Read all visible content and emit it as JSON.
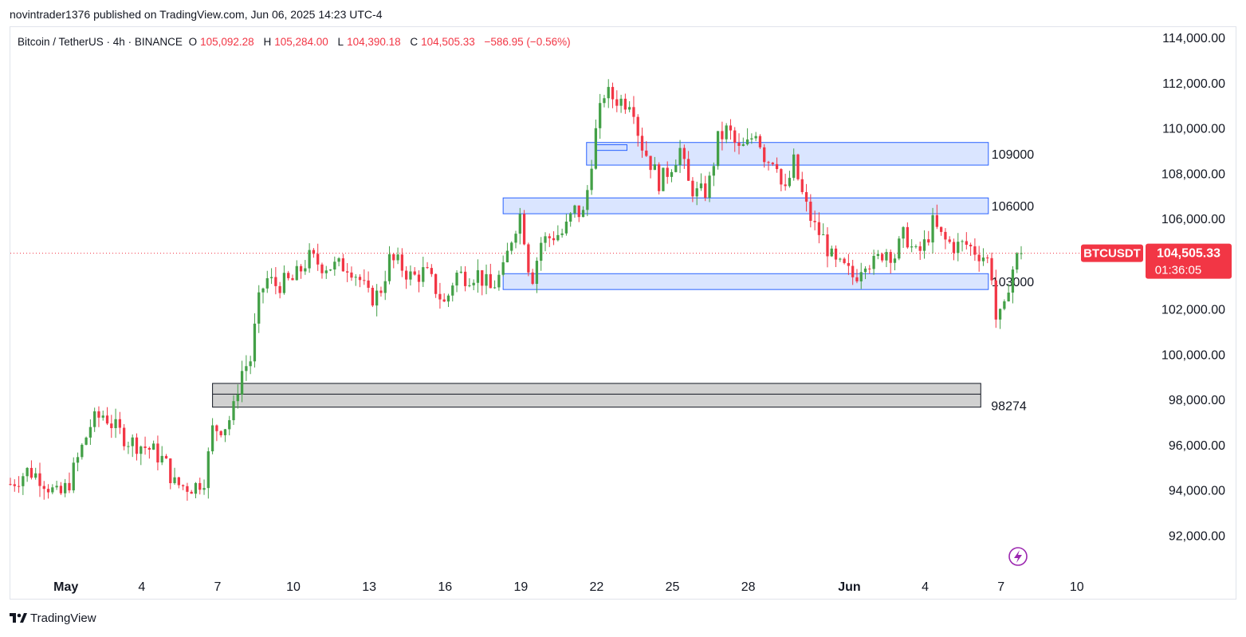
{
  "header": {
    "published_line": "novintrader1376 published on TradingView.com, Jun 06, 2025 14:23 UTC-4"
  },
  "legend": {
    "symbol": "Bitcoin / TetherUS · 4h · BINANCE",
    "open_label": "O",
    "open": "105,092.28",
    "high_label": "H",
    "high": "105,284.00",
    "low_label": "L",
    "low": "104,390.18",
    "close_label": "C",
    "close": "104,505.33",
    "change": "−586.95 (−0.56%)"
  },
  "price_tag": {
    "symbol": "BTCUSDT",
    "price": "104,505.33",
    "countdown": "01:36:05"
  },
  "footer": {
    "brand": "TradingView",
    "logo": "tradingview-logo-icon"
  },
  "colors": {
    "up": "#26a69a",
    "up_candle": "#43a047",
    "down": "#f23645",
    "zone_fill": "#d4e0ff",
    "zone_border": "#2962ff",
    "grey_zone": "#d1d1d1"
  },
  "chart_data": {
    "type": "candlestick",
    "timeframe": "4h",
    "y_axis": {
      "ticks": [
        92000,
        94000,
        96000,
        98000,
        100000,
        102000,
        104000,
        106000,
        108000,
        110000,
        112000,
        114000
      ],
      "tick_labels": [
        "92,000.00",
        "94,000.00",
        "96,000.00",
        "98,000.00",
        "100,000.00",
        "102,000.00",
        "104,000.00",
        "106,000.00",
        "108,000.00",
        "110,000.00",
        "112,000.00",
        "114,000.00"
      ],
      "ylim": [
        90500,
        114500
      ]
    },
    "x_axis": {
      "ticks": [
        "May",
        "4",
        "7",
        "10",
        "13",
        "16",
        "19",
        "22",
        "25",
        "28",
        "Jun",
        "4",
        "7",
        "10"
      ],
      "tick_day_index": [
        0,
        3,
        6,
        9,
        12,
        15,
        18,
        21,
        24,
        27,
        31,
        34,
        37,
        40
      ],
      "xlim_days": [
        -2.2,
        42.5
      ]
    },
    "current_price": 104505.33,
    "zones": [
      {
        "label": "109000",
        "low": 108400,
        "high": 109400,
        "start_day": 20.6,
        "end_day": 36.5,
        "color": "blue"
      },
      {
        "label": "106000",
        "low": 106250,
        "high": 106950,
        "start_day": 17.3,
        "end_day": 36.5,
        "color": "blue"
      },
      {
        "label": "103000",
        "low": 102900,
        "high": 103600,
        "start_day": 17.3,
        "end_day": 36.5,
        "color": "blue"
      },
      {
        "label": "98274",
        "low": 97700,
        "high": 98750,
        "start_day": 5.8,
        "end_day": 36.2,
        "color": "grey",
        "midline": 98274
      },
      {
        "label": "",
        "low": 109050,
        "high": 109300,
        "start_day": 21.0,
        "end_day": 22.2,
        "color": "blue"
      }
    ],
    "anchors": [
      [
        -2.2,
        94300
      ],
      [
        -1.5,
        94900
      ],
      [
        -1.0,
        94600
      ],
      [
        -0.3,
        93700
      ],
      [
        0.1,
        94300
      ],
      [
        0.6,
        95800
      ],
      [
        1.0,
        97000
      ],
      [
        1.5,
        97400
      ],
      [
        2.0,
        96700
      ],
      [
        2.5,
        96200
      ],
      [
        3.0,
        96000
      ],
      [
        3.4,
        95800
      ],
      [
        3.9,
        95300
      ],
      [
        4.3,
        94300
      ],
      [
        4.7,
        94200
      ],
      [
        5.1,
        94200
      ],
      [
        5.5,
        94600
      ],
      [
        5.8,
        96700
      ],
      [
        6.3,
        96900
      ],
      [
        6.6,
        97400
      ],
      [
        6.9,
        99200
      ],
      [
        7.3,
        99800
      ],
      [
        7.6,
        102200
      ],
      [
        7.9,
        103400
      ],
      [
        8.3,
        103100
      ],
      [
        9.0,
        103300
      ],
      [
        9.6,
        104300
      ],
      [
        10.1,
        104000
      ],
      [
        10.7,
        103900
      ],
      [
        11.2,
        104000
      ],
      [
        11.6,
        103400
      ],
      [
        12.0,
        102500
      ],
      [
        12.4,
        102700
      ],
      [
        12.8,
        104200
      ],
      [
        13.2,
        104000
      ],
      [
        13.7,
        103400
      ],
      [
        14.2,
        103700
      ],
      [
        14.6,
        103000
      ],
      [
        15.0,
        102200
      ],
      [
        15.4,
        103600
      ],
      [
        15.8,
        103500
      ],
      [
        16.3,
        103600
      ],
      [
        16.8,
        102900
      ],
      [
        17.3,
        103700
      ],
      [
        17.7,
        105500
      ],
      [
        18.0,
        106300
      ],
      [
        18.4,
        103200
      ],
      [
        18.8,
        105000
      ],
      [
        19.3,
        105300
      ],
      [
        19.7,
        105400
      ],
      [
        20.1,
        106400
      ],
      [
        20.5,
        106200
      ],
      [
        20.9,
        109500
      ],
      [
        21.3,
        111600
      ],
      [
        21.6,
        111400
      ],
      [
        22.1,
        111200
      ],
      [
        22.4,
        111400
      ],
      [
        22.7,
        109500
      ],
      [
        23.1,
        108600
      ],
      [
        23.5,
        107600
      ],
      [
        23.9,
        108300
      ],
      [
        24.3,
        109100
      ],
      [
        24.6,
        107600
      ],
      [
        25.0,
        107100
      ],
      [
        25.4,
        107300
      ],
      [
        25.8,
        109500
      ],
      [
        26.2,
        110000
      ],
      [
        26.6,
        109000
      ],
      [
        27.0,
        109300
      ],
      [
        27.3,
        110000
      ],
      [
        27.7,
        108600
      ],
      [
        28.1,
        108800
      ],
      [
        28.4,
        106900
      ],
      [
        28.8,
        108500
      ],
      [
        29.2,
        106800
      ],
      [
        29.6,
        105700
      ],
      [
        30.0,
        105100
      ],
      [
        30.4,
        104000
      ],
      [
        30.8,
        103800
      ],
      [
        31.2,
        103400
      ],
      [
        31.6,
        104300
      ],
      [
        32.0,
        104000
      ],
      [
        32.4,
        104700
      ],
      [
        32.8,
        104400
      ],
      [
        33.2,
        105400
      ],
      [
        33.6,
        104400
      ],
      [
        33.9,
        104700
      ],
      [
        34.3,
        105800
      ],
      [
        34.7,
        105100
      ],
      [
        35.2,
        104800
      ],
      [
        35.6,
        104900
      ],
      [
        36.0,
        104600
      ],
      [
        36.3,
        104400
      ],
      [
        36.6,
        104000
      ],
      [
        36.8,
        101600
      ],
      [
        37.1,
        101700
      ],
      [
        37.3,
        103200
      ],
      [
        37.6,
        104300
      ],
      [
        37.8,
        104500
      ]
    ]
  }
}
